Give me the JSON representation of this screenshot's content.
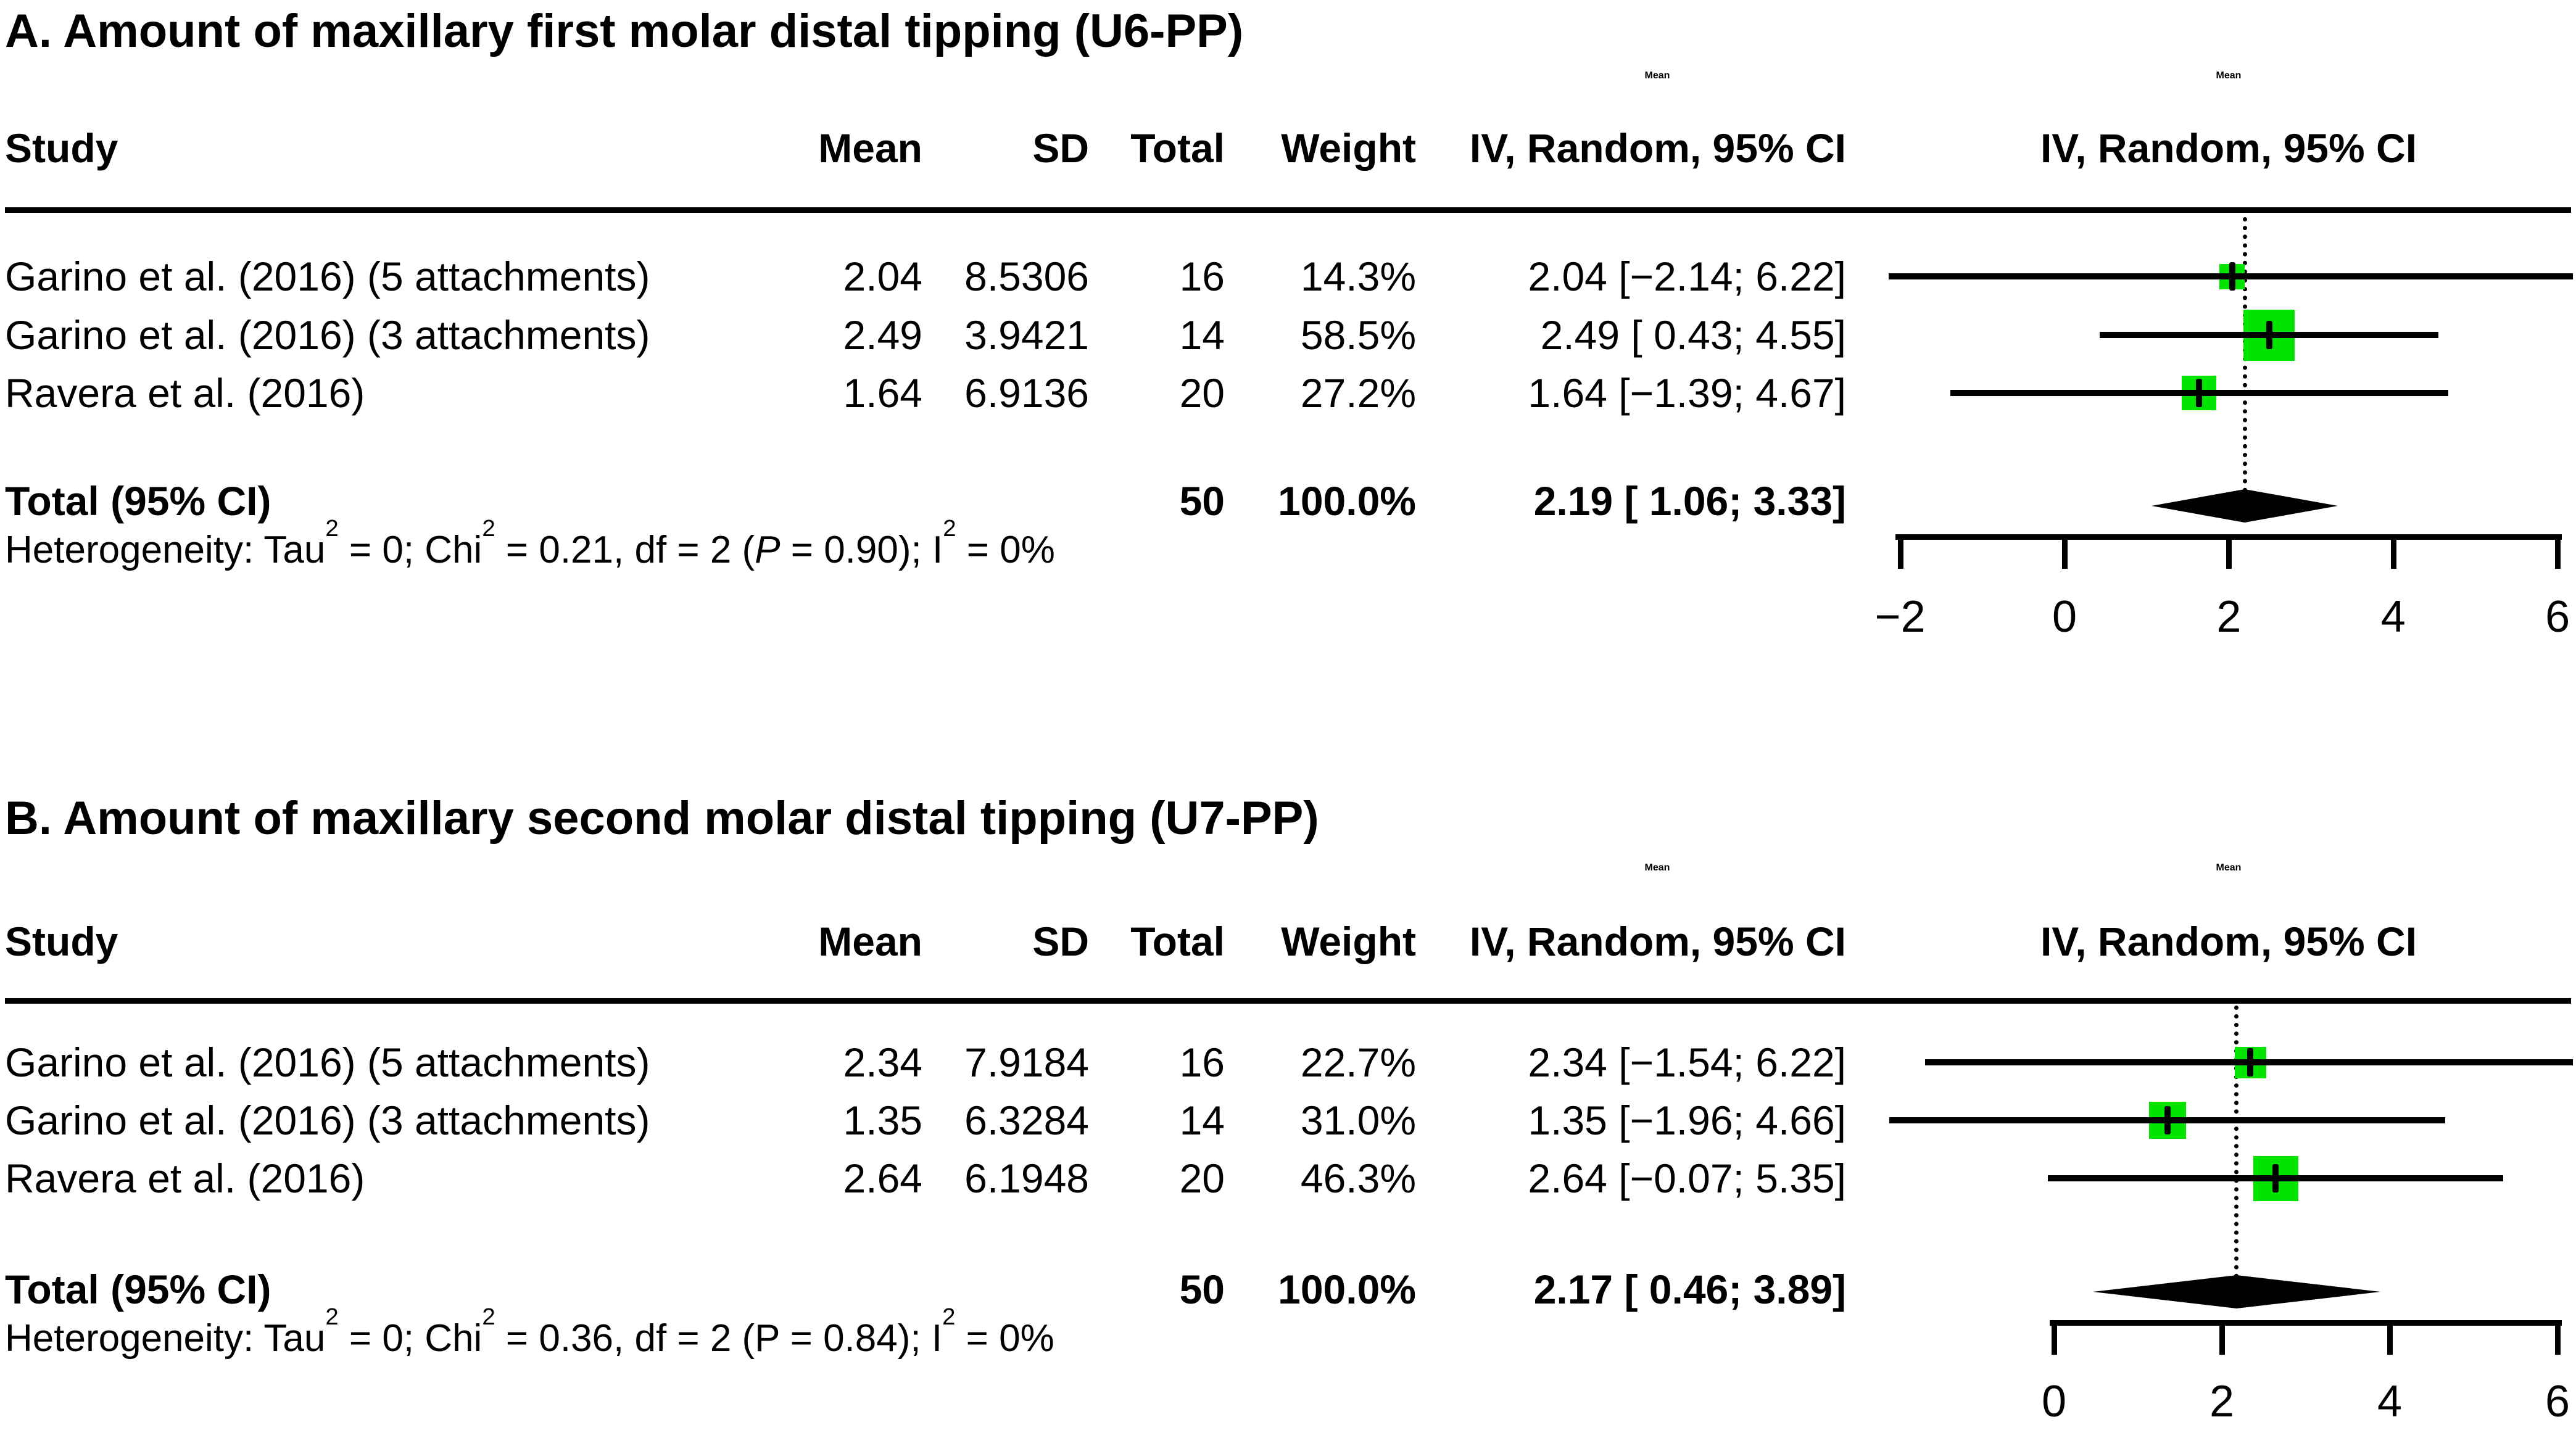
{
  "figure": {
    "panels": [
      {
        "title": "A. Amount of maxillary first molar distal tipping (U6-PP)",
        "header": {
          "study": "Study",
          "mean": "Mean",
          "sd": "SD",
          "total": "Total",
          "weight": "Weight",
          "effect_group_label": "Mean",
          "effect_ci_label": "IV, Random, 95% CI",
          "plot_group_label": "Mean",
          "plot_ci_label": "IV, Random, 95% CI"
        },
        "rows": [
          {
            "study": "Garino et al. (2016) (5 attachments)",
            "mean": "2.04",
            "sd": "8.5306",
            "total": "16",
            "weight": "14.3%",
            "effect": "2.04 [−2.14; 6.22]"
          },
          {
            "study": "Garino et al. (2016) (3 attachments)",
            "mean": "2.49",
            "sd": "3.9421",
            "total": "14",
            "weight": "58.5%",
            "effect": "2.49 [ 0.43; 4.55]"
          },
          {
            "study": "Ravera et al. (2016)",
            "mean": "1.64",
            "sd": "6.9136",
            "total": "20",
            "weight": "27.2%",
            "effect": "1.64 [−1.39; 4.67]"
          }
        ],
        "total_row": {
          "label": "Total (95% CI)",
          "total": "50",
          "weight": "100.0%",
          "effect": "2.19 [ 1.06; 3.33]"
        },
        "heterogeneity_segments": [
          {
            "t": "Heterogeneity: Tau"
          },
          {
            "sup": "2"
          },
          {
            "t": " = 0; Chi"
          },
          {
            "sup": "2"
          },
          {
            "t": " = 0.21, df = 2 ("
          },
          {
            "i": "P"
          },
          {
            "t": " = 0.90); I"
          },
          {
            "sup": "2"
          },
          {
            "t": " = 0%"
          }
        ]
      },
      {
        "title": "B. Amount of maxillary second molar distal tipping (U7-PP)",
        "header": {
          "study": "Study",
          "mean": "Mean",
          "sd": "SD",
          "total": "Total",
          "weight": "Weight",
          "effect_group_label": "Mean",
          "effect_ci_label": "IV, Random, 95% CI",
          "plot_group_label": "Mean",
          "plot_ci_label": "IV, Random, 95% CI"
        },
        "rows": [
          {
            "study": "Garino et al. (2016) (5 attachments)",
            "mean": "2.34",
            "sd": "7.9184",
            "total": "16",
            "weight": "22.7%",
            "effect": "2.34 [−1.54; 6.22]"
          },
          {
            "study": "Garino et al. (2016) (3 attachments)",
            "mean": "1.35",
            "sd": "6.3284",
            "total": "14",
            "weight": "31.0%",
            "effect": "1.35 [−1.96; 4.66]"
          },
          {
            "study": "Ravera et al. (2016)",
            "mean": "2.64",
            "sd": "6.1948",
            "total": "20",
            "weight": "46.3%",
            "effect": "2.64 [−0.07; 5.35]"
          }
        ],
        "total_row": {
          "label": "Total (95% CI)",
          "total": "50",
          "weight": "100.0%",
          "effect": "2.17 [ 0.46; 3.89]"
        },
        "heterogeneity_segments": [
          {
            "t": "Heterogeneity: Tau"
          },
          {
            "sup": "2"
          },
          {
            "t": " = 0; Chi"
          },
          {
            "sup": "2"
          },
          {
            "t": " = 0.36, df = 2 (P = 0.84); I"
          },
          {
            "sup": "2"
          },
          {
            "t": " = 0%"
          }
        ]
      }
    ],
    "colors": {
      "square_green": "#00E400",
      "ink": "#000000"
    }
  },
  "chart_data": [
    {
      "type": "forest",
      "title": "A. Amount of maxillary first molar distal tipping (U6-PP)",
      "effect_measure": "Mean",
      "model": "IV, Random, 95% CI",
      "studies": [
        "Garino et al. (2016) (5 attachments)",
        "Garino et al. (2016) (3 attachments)",
        "Ravera et al. (2016)"
      ],
      "means": [
        2.04,
        2.49,
        1.64
      ],
      "sds": [
        8.5306,
        3.9421,
        6.9136
      ],
      "totals": [
        16,
        14,
        20
      ],
      "weights_pct": [
        14.3,
        58.5,
        27.2
      ],
      "ci_low": [
        -2.14,
        0.43,
        -1.39
      ],
      "ci_high": [
        6.22,
        4.55,
        4.67
      ],
      "pooled": {
        "total": 50,
        "weight_pct": 100.0,
        "mean": 2.19,
        "ci_low": 1.06,
        "ci_high": 3.33
      },
      "heterogeneity": {
        "tau2": 0,
        "chi2": 0.21,
        "df": 2,
        "p": 0.9,
        "i2_pct": 0
      },
      "axis": {
        "xlim": [
          -2,
          6
        ],
        "ticks": [
          -2,
          0,
          2,
          4,
          6
        ],
        "tick_labels": [
          "−2",
          "0",
          "2",
          "4",
          "6"
        ]
      }
    },
    {
      "type": "forest",
      "title": "B. Amount of maxillary second molar distal tipping (U7-PP)",
      "effect_measure": "Mean",
      "model": "IV, Random, 95% CI",
      "studies": [
        "Garino et al. (2016) (5 attachments)",
        "Garino et al. (2016) (3 attachments)",
        "Ravera et al. (2016)"
      ],
      "means": [
        2.34,
        1.35,
        2.64
      ],
      "sds": [
        7.9184,
        6.3284,
        6.1948
      ],
      "totals": [
        16,
        14,
        20
      ],
      "weights_pct": [
        22.7,
        31.0,
        46.3
      ],
      "ci_low": [
        -1.54,
        -1.96,
        -0.07
      ],
      "ci_high": [
        6.22,
        4.66,
        5.35
      ],
      "pooled": {
        "total": 50,
        "weight_pct": 100.0,
        "mean": 2.17,
        "ci_low": 0.46,
        "ci_high": 3.89
      },
      "heterogeneity": {
        "tau2": 0,
        "chi2": 0.36,
        "df": 2,
        "p": 0.84,
        "i2_pct": 0
      },
      "axis": {
        "xlim": [
          0,
          6
        ],
        "ticks": [
          0,
          2,
          4,
          6
        ],
        "tick_labels": [
          "0",
          "2",
          "4",
          "6"
        ]
      }
    }
  ]
}
